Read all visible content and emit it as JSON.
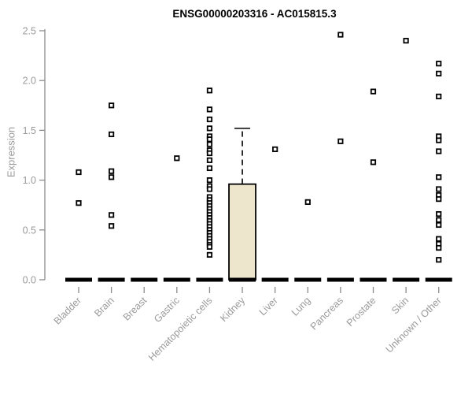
{
  "chart_data": {
    "type": "boxplot-scatter",
    "title": "ENSG00000203316 - AC015815.3",
    "ylabel": "Expression",
    "ylim": [
      0.0,
      2.5
    ],
    "yticks": [
      0.0,
      0.5,
      1.0,
      1.5,
      2.0,
      2.5
    ],
    "ytick_labels": [
      "0.0",
      "0.5",
      "1.0",
      "1.5",
      "2.0",
      "2.5"
    ],
    "grid": false,
    "legend": "none",
    "marker": "open-square",
    "colors": {
      "marker_stroke": "#000000",
      "marker_fill": "#ffffff",
      "box_fill": "#EDE6CC",
      "box_stroke": "#000000",
      "median_bar": "#000000",
      "axis": "#8c8c8c",
      "tick_label": "#9a9a9a",
      "title": "#000000",
      "background": "#ffffff"
    },
    "categories": [
      {
        "label": "Bladder",
        "median": 0.0,
        "points": [
          1.08,
          0.77
        ]
      },
      {
        "label": "Brain",
        "median": 0.0,
        "points": [
          1.75,
          1.46,
          1.09,
          1.03,
          0.65,
          0.54
        ]
      },
      {
        "label": "Breast",
        "median": 0.0,
        "points": []
      },
      {
        "label": "Gastric",
        "median": 0.0,
        "points": [
          1.22
        ]
      },
      {
        "label": "Hematopoietic cells",
        "median": 0.0,
        "points": [
          1.9,
          1.71,
          1.61,
          1.52,
          1.44,
          1.41,
          1.36,
          1.3,
          1.27,
          1.2,
          1.12,
          1.0,
          0.94,
          0.91,
          0.83,
          0.8,
          0.77,
          0.74,
          0.71,
          0.68,
          0.65,
          0.62,
          0.59,
          0.56,
          0.53,
          0.5,
          0.47,
          0.44,
          0.41,
          0.38,
          0.35,
          0.33,
          0.25
        ]
      },
      {
        "label": "Kidney",
        "median": 0.0,
        "points": [],
        "box": {
          "q1": 0.0,
          "median": 0.0,
          "q3": 0.96,
          "whisker_low": 0.0,
          "whisker_high": 1.52
        }
      },
      {
        "label": "Liver",
        "median": 0.0,
        "points": [
          1.31
        ]
      },
      {
        "label": "Lung",
        "median": 0.0,
        "points": [
          0.78
        ]
      },
      {
        "label": "Pancreas",
        "median": 0.0,
        "points": [
          2.46,
          1.39
        ]
      },
      {
        "label": "Prostate",
        "median": 0.0,
        "points": [
          1.89,
          1.18
        ]
      },
      {
        "label": "Skin",
        "median": 0.0,
        "points": [
          2.4
        ]
      },
      {
        "label": "Unknown / Other",
        "median": 0.0,
        "points": [
          2.17,
          2.07,
          1.84,
          1.44,
          1.4,
          1.29,
          1.03,
          0.91,
          0.85,
          0.81,
          0.66,
          0.6,
          0.55,
          0.41,
          0.36,
          0.32,
          0.2
        ]
      }
    ]
  }
}
